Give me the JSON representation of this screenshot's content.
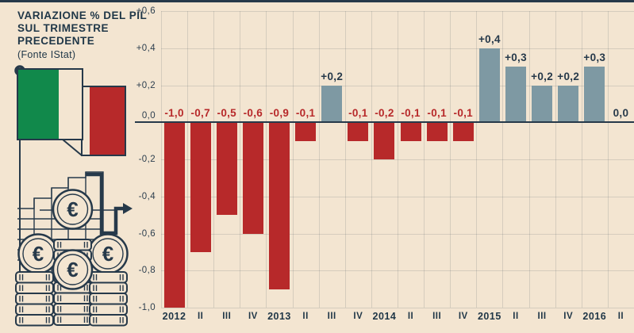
{
  "header": {
    "title_lines": [
      "VARIAZIONE % DEL PIL",
      "SUL TRIMESTRE",
      "PRECEDENTE"
    ],
    "source": "(Fonte IStat)"
  },
  "illustration": {
    "icons": [
      "italian-flag-icon",
      "flagpole-icon",
      "growth-steps-icon",
      "growth-arrow-icon",
      "euro-coin-stacks-icon"
    ],
    "euro_symbol": "€",
    "flag_colors": {
      "green": "#11894b",
      "white": "#f3e5d1",
      "red": "#b7292a"
    }
  },
  "colors": {
    "background": "#f3e5d1",
    "navy": "#26394a",
    "negative": "#b7292a",
    "positive": "#7e99a3",
    "grid": "rgba(38,57,74,0.14)"
  },
  "chart_data": {
    "type": "bar",
    "title": "VARIAZIONE % DEL PIL SUL TRIMESTRE PRECEDENTE",
    "subtitle": "(Fonte IStat)",
    "xlabel": "",
    "ylabel": "",
    "categories": [
      "2012",
      "II",
      "III",
      "IV",
      "2013",
      "II",
      "III",
      "IV",
      "2014",
      "II",
      "III",
      "IV",
      "2015",
      "II",
      "III",
      "IV",
      "2016",
      "II"
    ],
    "values": [
      -1.0,
      -0.7,
      -0.5,
      -0.6,
      -0.9,
      -0.1,
      0.2,
      -0.1,
      -0.2,
      -0.1,
      -0.1,
      -0.1,
      0.4,
      0.3,
      0.2,
      0.2,
      0.3,
      0.0
    ],
    "value_labels": [
      "-1,0",
      "-0,7",
      "-0,5",
      "-0,6",
      "-0,9",
      "-0,1",
      "+0,2",
      "-0,1",
      "-0,2",
      "-0,1",
      "-0,1",
      "-0,1",
      "+0,4",
      "+0,3",
      "+0,2",
      "+0,2",
      "+0,3",
      "0,0"
    ],
    "y_ticks": {
      "values": [
        0.6,
        0.4,
        0.2,
        0,
        -0.2,
        -0.4,
        -0.6,
        -0.8,
        -1.0
      ],
      "labels": [
        "+0,6",
        "+0,4",
        "+0,2",
        "0,0",
        "-0,2",
        "-0,4",
        "-0,6",
        "-0,8",
        "-1,0"
      ]
    },
    "ylim": [
      -1.0,
      0.6
    ],
    "grid": true,
    "legend": "none",
    "bar_colors": {
      "negative": "#b7292a",
      "positive": "#7e99a3"
    }
  }
}
